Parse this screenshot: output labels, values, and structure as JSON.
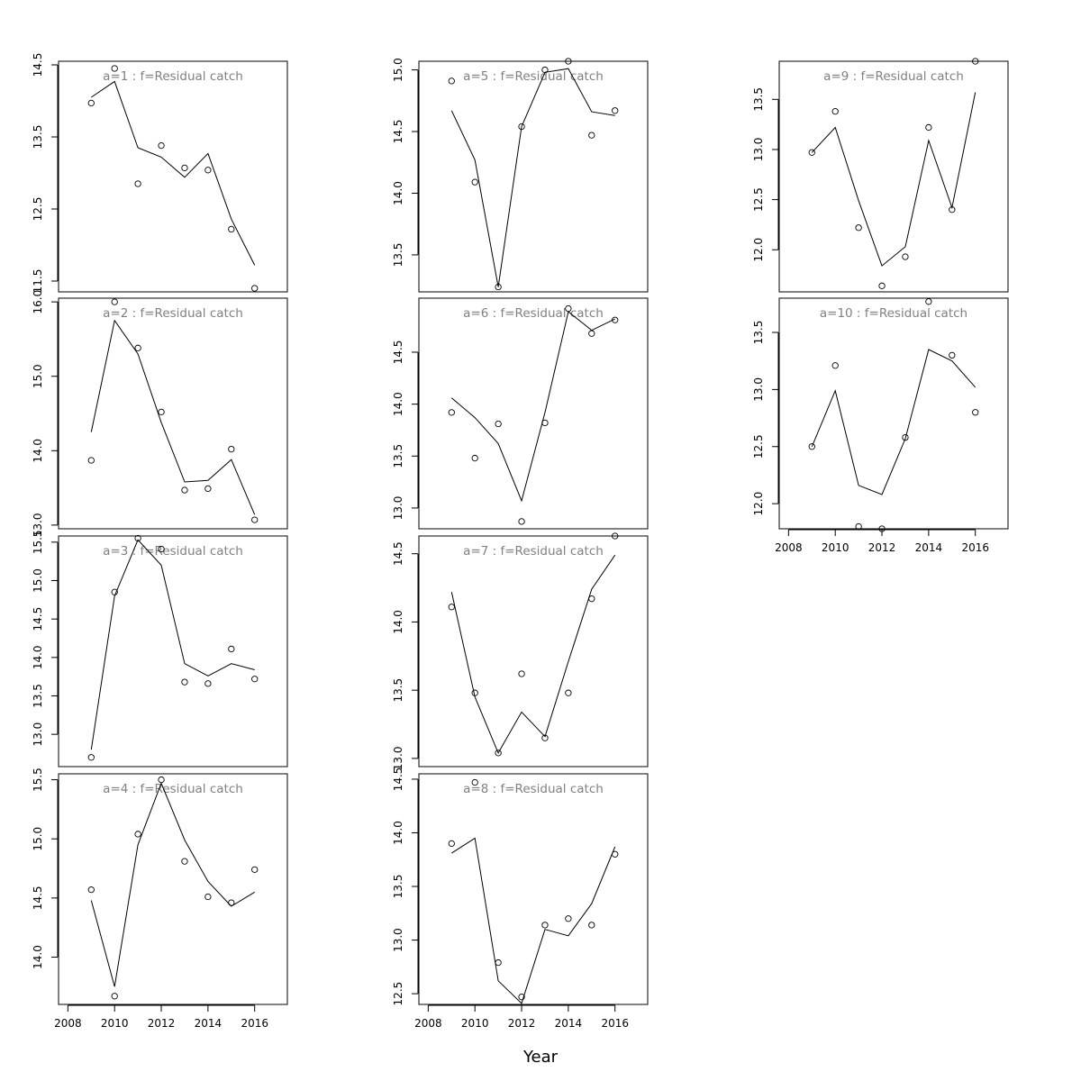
{
  "chart_data": {
    "type": "scatter",
    "xlabel": "Year",
    "x_ticks": [
      2008,
      2010,
      2012,
      2014,
      2016
    ],
    "x": [
      2009,
      2010,
      2011,
      2012,
      2013,
      2014,
      2015,
      2016
    ],
    "panels": [
      {
        "title": "a=1  :  f=Residual catch",
        "ylim": [
          11.35,
          14.55
        ],
        "yticks": [
          11.5,
          12.5,
          13.5,
          14.5
        ],
        "ytick_labels": [
          "11.5",
          "12.5",
          "13.5",
          "14.5"
        ],
        "x_axis": false,
        "observed": [
          13.97,
          14.45,
          12.85,
          13.38,
          13.07,
          13.04,
          12.22,
          11.4
        ],
        "fitted": [
          14.05,
          14.27,
          13.35,
          13.22,
          12.94,
          13.27,
          12.36,
          11.72
        ]
      },
      {
        "title": "a=2  :  f=Residual catch",
        "ylim": [
          12.95,
          16.05
        ],
        "yticks": [
          13.0,
          14.0,
          15.0,
          16.0
        ],
        "ytick_labels": [
          "13.0",
          "14.0",
          "15.0",
          "16.0"
        ],
        "x_axis": false,
        "observed": [
          13.87,
          16.0,
          15.38,
          14.52,
          13.47,
          13.49,
          14.02,
          13.07
        ],
        "fitted": [
          14.25,
          15.75,
          15.3,
          14.38,
          13.58,
          13.6,
          13.88,
          13.14
        ]
      },
      {
        "title": "a=3  :  f=Residual catch",
        "ylim": [
          12.58,
          15.58
        ],
        "yticks": [
          13.0,
          13.5,
          14.0,
          14.5,
          15.0,
          15.5
        ],
        "ytick_labels": [
          "13.0",
          "13.5",
          "14.0",
          "14.5",
          "15.0",
          "15.5"
        ],
        "x_axis": false,
        "observed": [
          12.7,
          14.85,
          15.55,
          15.41,
          13.68,
          13.66,
          14.11,
          13.72
        ],
        "fitted": [
          12.8,
          14.8,
          15.53,
          15.2,
          13.92,
          13.76,
          13.92,
          13.84
        ]
      },
      {
        "title": "a=4  :  f=Residual catch",
        "ylim": [
          13.6,
          15.55
        ],
        "yticks": [
          14.0,
          14.5,
          15.0,
          15.5
        ],
        "ytick_labels": [
          "14.0",
          "14.5",
          "15.0",
          "15.5"
        ],
        "x_axis": true,
        "observed": [
          14.57,
          13.67,
          15.04,
          15.5,
          14.81,
          14.51,
          14.46,
          14.74
        ],
        "fitted": [
          14.48,
          13.75,
          14.95,
          15.47,
          14.99,
          14.64,
          14.43,
          14.55
        ]
      },
      {
        "title": "a=5  :  f=Residual catch",
        "ylim": [
          13.2,
          15.07
        ],
        "yticks": [
          13.5,
          14.0,
          14.5,
          15.0
        ],
        "ytick_labels": [
          "13.5",
          "14.0",
          "14.5",
          "15.0"
        ],
        "x_axis": false,
        "observed": [
          14.91,
          14.09,
          13.24,
          14.54,
          15.0,
          15.07,
          14.47,
          14.67
        ],
        "fitted": [
          14.67,
          14.27,
          13.24,
          14.54,
          14.98,
          15.01,
          14.66,
          14.63
        ]
      },
      {
        "title": "a=6  :  f=Residual catch",
        "ylim": [
          12.8,
          15.02
        ],
        "yticks": [
          13.0,
          13.5,
          14.0,
          14.5
        ],
        "ytick_labels": [
          "13.0",
          "13.5",
          "14.0",
          "14.5"
        ],
        "x_axis": false,
        "observed": [
          13.92,
          13.48,
          13.81,
          12.87,
          13.82,
          14.92,
          14.68,
          14.81
        ],
        "fitted": [
          14.06,
          13.87,
          13.62,
          13.07,
          13.92,
          14.89,
          14.71,
          14.82
        ]
      },
      {
        "title": "a=7  :  f=Residual catch",
        "ylim": [
          12.94,
          14.63
        ],
        "yticks": [
          13.0,
          13.5,
          14.0,
          14.5
        ],
        "ytick_labels": [
          "13.0",
          "13.5",
          "14.0",
          "14.5"
        ],
        "x_axis": false,
        "observed": [
          14.11,
          13.48,
          13.04,
          13.62,
          13.15,
          13.48,
          14.17,
          14.63
        ],
        "fitted": [
          14.22,
          13.45,
          13.04,
          13.34,
          13.16,
          13.71,
          14.24,
          14.49
        ]
      },
      {
        "title": "a=8  :  f=Residual catch",
        "ylim": [
          12.4,
          14.55
        ],
        "yticks": [
          12.5,
          13.0,
          13.5,
          14.0,
          14.5
        ],
        "ytick_labels": [
          "12.5",
          "13.0",
          "13.5",
          "14.0",
          "14.5"
        ],
        "x_axis": true,
        "observed": [
          13.9,
          14.47,
          12.79,
          12.47,
          13.14,
          13.2,
          13.14,
          13.8
        ],
        "fitted": [
          13.81,
          13.95,
          12.62,
          12.41,
          13.1,
          13.04,
          13.34,
          13.87
        ]
      },
      {
        "title": "a=9  :  f=Residual catch",
        "ylim": [
          11.58,
          13.88
        ],
        "yticks": [
          12.0,
          12.5,
          13.0,
          13.5
        ],
        "ytick_labels": [
          "12.0",
          "12.5",
          "13.0",
          "13.5"
        ],
        "x_axis": false,
        "observed": [
          12.97,
          13.38,
          12.22,
          11.64,
          11.93,
          13.22,
          12.4,
          13.88
        ],
        "fitted": [
          12.97,
          13.22,
          12.49,
          11.84,
          12.03,
          13.09,
          12.42,
          13.57
        ]
      },
      {
        "title": "a=10  :  f=Residual catch",
        "ylim": [
          11.78,
          13.8
        ],
        "yticks": [
          12.0,
          12.5,
          13.0,
          13.5
        ],
        "ytick_labels": [
          "12.0",
          "12.5",
          "13.0",
          "13.5"
        ],
        "x_axis": true,
        "observed": [
          12.5,
          13.21,
          11.8,
          11.78,
          12.58,
          13.77,
          13.3,
          12.8
        ],
        "fitted": [
          12.5,
          12.99,
          12.16,
          12.08,
          12.57,
          13.35,
          13.25,
          13.02
        ]
      }
    ]
  }
}
